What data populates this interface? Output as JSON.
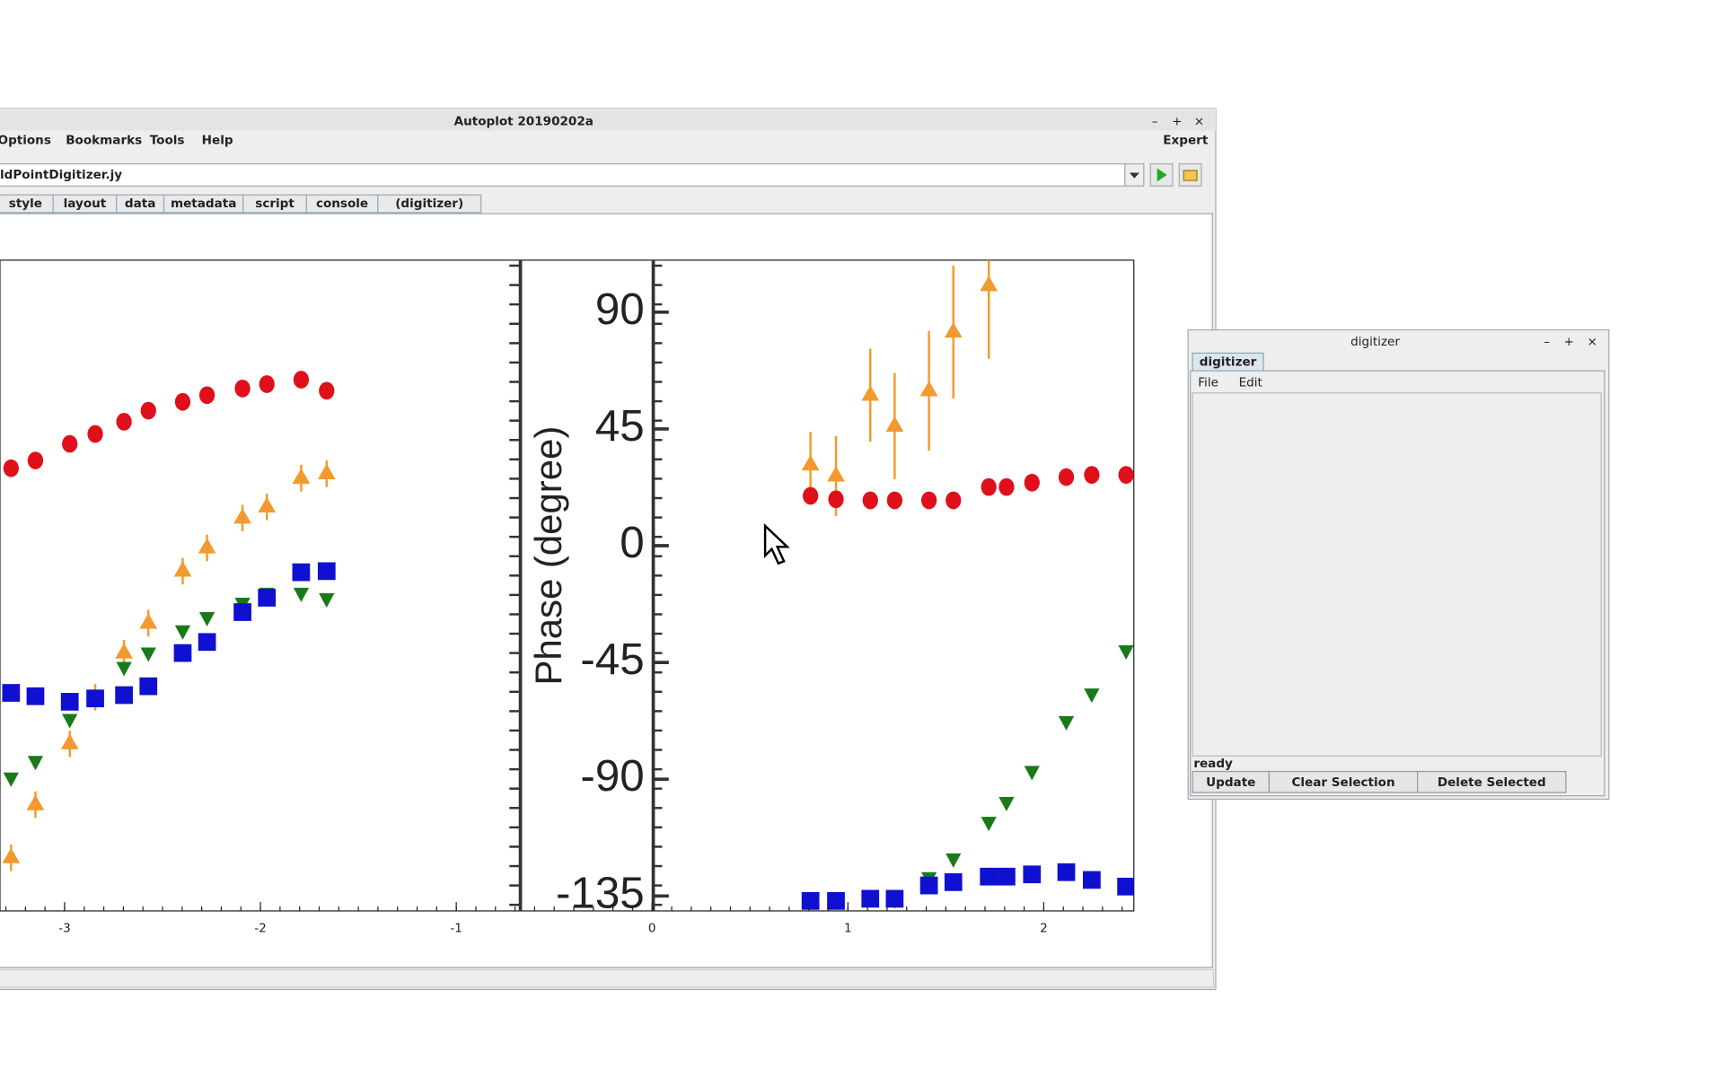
{
  "window": {
    "title": "Autoplot 20190202a",
    "menu": [
      "Options",
      "Bookmarks",
      "Tools",
      "Help"
    ],
    "mode": "Expert",
    "address": "ldPointDigitizer.jy",
    "tabs": [
      "style",
      "layout",
      "data",
      "metadata",
      "script",
      "console",
      "(digitizer)"
    ]
  },
  "plot": {
    "xlim": [
      -3.33,
      2.46
    ],
    "xticks": [
      -3,
      -2,
      -1,
      0,
      1,
      2
    ]
  },
  "image": {
    "ylabel": "Phase (degree)",
    "yticks": [
      90,
      45,
      0,
      -45,
      -90,
      -135
    ]
  },
  "digitizer": {
    "title": "digitizer",
    "tab": "digitizer",
    "menu": [
      "File",
      "Edit"
    ],
    "status": "ready",
    "buttons": [
      "Update",
      "Clear Selection",
      "Delete Selected"
    ]
  }
}
